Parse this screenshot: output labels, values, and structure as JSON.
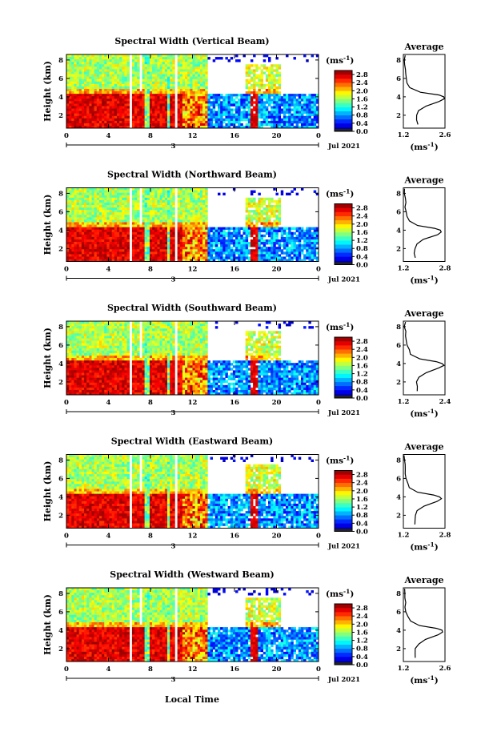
{
  "figure": {
    "colormap_hint": "jet",
    "x_axis_label": "Local Time",
    "date_label": "Jul 2021",
    "day_marker": "3",
    "y_axis_label": "Height (km)",
    "unit_label": "(ms",
    "unit_sup": "-1",
    "unit_close": ")"
  },
  "chart_data": [
    {
      "type": "heatmap",
      "title": "Spectral Width (Vertical Beam)",
      "xlabel": "",
      "ylabel": "Height (km)",
      "x_ticks": [
        "0",
        "4",
        "8",
        "12",
        "16",
        "20",
        "0"
      ],
      "y_ticks": [
        "2",
        "4",
        "6",
        "8"
      ],
      "xlim": [
        0,
        24
      ],
      "ylim": [
        0.6,
        8.6
      ],
      "colorbar_ticks": [
        "0.0",
        "0.4",
        "0.8",
        "1.2",
        "1.6",
        "2.0",
        "2.4",
        "2.8"
      ],
      "colorbar_range": [
        0.0,
        3.0
      ],
      "average": {
        "title": "Average",
        "xlabel": "(ms-1)",
        "x_ticks": [
          "1.2",
          "2.6"
        ],
        "xlim": [
          1.2,
          2.6
        ],
        "y_ticks": [
          "2",
          "4",
          "6",
          "8"
        ],
        "ylim": [
          0.6,
          8.6
        ],
        "height": [
          1.0,
          1.5,
          2.0,
          2.5,
          3.0,
          3.5,
          3.8,
          4.0,
          4.2,
          4.5,
          5.0,
          5.5,
          6.0,
          6.5,
          7.0,
          7.5,
          8.0,
          8.5
        ],
        "value": [
          1.68,
          1.65,
          1.66,
          1.72,
          1.95,
          2.4,
          2.56,
          2.55,
          2.4,
          1.75,
          1.4,
          1.33,
          1.3,
          1.27,
          1.28,
          1.26,
          1.25,
          1.24
        ]
      }
    },
    {
      "type": "heatmap",
      "title": "Spectral Width (Northward Beam)",
      "xlabel": "",
      "ylabel": "Height (km)",
      "x_ticks": [
        "0",
        "4",
        "8",
        "12",
        "16",
        "20",
        "0"
      ],
      "y_ticks": [
        "2",
        "4",
        "6",
        "8"
      ],
      "xlim": [
        0,
        24
      ],
      "ylim": [
        0.6,
        8.6
      ],
      "colorbar_ticks": [
        "0.0",
        "0.4",
        "0.8",
        "1.2",
        "1.6",
        "2.0",
        "2.4",
        "2.8"
      ],
      "colorbar_range": [
        0.0,
        3.0
      ],
      "average": {
        "title": "Average",
        "xlabel": "(ms-1)",
        "x_ticks": [
          "1.2",
          "2.8"
        ],
        "xlim": [
          1.2,
          2.8
        ],
        "y_ticks": [
          "2",
          "4",
          "6",
          "8"
        ],
        "ylim": [
          0.6,
          8.6
        ],
        "height": [
          1.0,
          1.5,
          2.0,
          2.5,
          3.0,
          3.5,
          3.8,
          4.0,
          4.2,
          4.5,
          5.0,
          5.5,
          6.0,
          6.5,
          7.0,
          7.5,
          8.0,
          8.5
        ],
        "value": [
          1.66,
          1.64,
          1.65,
          1.72,
          1.95,
          2.5,
          2.68,
          2.62,
          2.4,
          1.75,
          1.42,
          1.35,
          1.3,
          1.27,
          1.28,
          1.26,
          1.25,
          1.24
        ]
      }
    },
    {
      "type": "heatmap",
      "title": "Spectral Width (Southward Beam)",
      "xlabel": "",
      "ylabel": "Height (km)",
      "x_ticks": [
        "0",
        "4",
        "8",
        "12",
        "16",
        "20",
        "0"
      ],
      "y_ticks": [
        "2",
        "4",
        "6",
        "8"
      ],
      "xlim": [
        0,
        24
      ],
      "ylim": [
        0.6,
        8.6
      ],
      "colorbar_ticks": [
        "0.0",
        "0.4",
        "0.8",
        "1.2",
        "1.6",
        "2.0",
        "2.4",
        "2.8"
      ],
      "colorbar_range": [
        0.0,
        3.0
      ],
      "average": {
        "title": "Average",
        "xlabel": "(ms-1)",
        "x_ticks": [
          "1.2",
          "2.4"
        ],
        "xlim": [
          1.2,
          2.4
        ],
        "y_ticks": [
          "2",
          "4",
          "6",
          "8"
        ],
        "ylim": [
          0.6,
          8.6
        ],
        "height": [
          1.0,
          1.5,
          2.0,
          2.5,
          3.0,
          3.5,
          3.8,
          4.0,
          4.2,
          4.5,
          5.0,
          5.5,
          6.0,
          6.5,
          7.0,
          7.5,
          8.0,
          8.5
        ],
        "value": [
          1.6,
          1.58,
          1.6,
          1.66,
          1.85,
          2.2,
          2.36,
          2.33,
          2.15,
          1.68,
          1.42,
          1.35,
          1.3,
          1.27,
          1.28,
          1.26,
          1.25,
          1.24
        ]
      }
    },
    {
      "type": "heatmap",
      "title": "Spectral Width (Eastward Beam)",
      "xlabel": "",
      "ylabel": "Height (km)",
      "x_ticks": [
        "0",
        "4",
        "8",
        "12",
        "16",
        "20",
        "0"
      ],
      "y_ticks": [
        "2",
        "4",
        "6",
        "8"
      ],
      "xlim": [
        0,
        24
      ],
      "ylim": [
        0.6,
        8.6
      ],
      "colorbar_ticks": [
        "0.0",
        "0.4",
        "0.8",
        "1.2",
        "1.6",
        "2.0",
        "2.4",
        "2.8"
      ],
      "colorbar_range": [
        0.0,
        3.0
      ],
      "average": {
        "title": "Average",
        "xlabel": "(ms-1)",
        "x_ticks": [
          "1.2",
          "2.8"
        ],
        "xlim": [
          1.2,
          2.8
        ],
        "y_ticks": [
          "2",
          "4",
          "6",
          "8"
        ],
        "ylim": [
          0.6,
          8.6
        ],
        "height": [
          1.0,
          1.5,
          2.0,
          2.5,
          3.0,
          3.5,
          3.8,
          4.0,
          4.2,
          4.5,
          5.0,
          5.5,
          6.0,
          6.5,
          7.0,
          7.5,
          8.0,
          8.5
        ],
        "value": [
          1.66,
          1.64,
          1.66,
          1.74,
          1.98,
          2.48,
          2.66,
          2.6,
          2.38,
          1.76,
          1.42,
          1.35,
          1.3,
          1.27,
          1.28,
          1.26,
          1.25,
          1.24
        ]
      }
    },
    {
      "type": "heatmap",
      "title": "Spectral Width (Westward Beam)",
      "xlabel": "Local Time",
      "ylabel": "Height (km)",
      "x_ticks": [
        "0",
        "4",
        "8",
        "12",
        "16",
        "20",
        "0"
      ],
      "y_ticks": [
        "2",
        "4",
        "6",
        "8"
      ],
      "xlim": [
        0,
        24
      ],
      "ylim": [
        0.6,
        8.6
      ],
      "colorbar_ticks": [
        "0.0",
        "0.4",
        "0.8",
        "1.2",
        "1.6",
        "2.0",
        "2.4",
        "2.8"
      ],
      "colorbar_range": [
        0.0,
        3.0
      ],
      "average": {
        "title": "Average",
        "xlabel": "(ms-1)",
        "x_ticks": [
          "1.2",
          "2.6"
        ],
        "xlim": [
          1.2,
          2.6
        ],
        "y_ticks": [
          "2",
          "4",
          "6",
          "8"
        ],
        "ylim": [
          0.6,
          8.6
        ],
        "height": [
          1.0,
          1.5,
          2.0,
          2.5,
          3.0,
          3.5,
          3.8,
          4.0,
          4.2,
          4.5,
          5.0,
          5.5,
          6.0,
          6.5,
          7.0,
          7.5,
          8.0,
          8.5
        ],
        "value": [
          1.62,
          1.6,
          1.62,
          1.7,
          1.92,
          2.38,
          2.52,
          2.5,
          2.3,
          1.72,
          1.42,
          1.35,
          1.3,
          1.27,
          1.28,
          1.26,
          1.25,
          1.24
        ]
      }
    }
  ]
}
